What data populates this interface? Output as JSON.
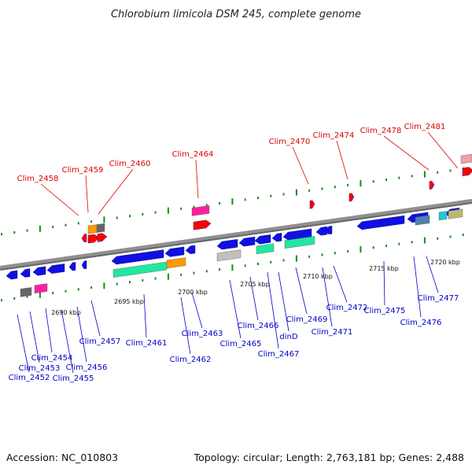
{
  "header": {
    "title": "Chlorobium limicola DSM 245, complete genome"
  },
  "footer": {
    "accession": "Accession: NC_010803",
    "summary": "Topology: circular; Length: 2,763,181 bp; Genes: 2,488"
  },
  "colors": {
    "backbone": "#909090",
    "tick_green": "#1a8a1a",
    "forward_label": "#dd0000",
    "reverse_label": "#0000c8",
    "gene_blue": "#1010e0",
    "gene_red": "#ff0000",
    "rna_green": "#20e8a0",
    "orange": "#ff9900",
    "magenta": "#ff20a0",
    "gray": "#666666",
    "light_gray": "#c0c0c0",
    "steel_blue": "#5080b0",
    "cyan": "#20c8d8",
    "khaki": "#c0b870",
    "pink": "#f0a0a8"
  },
  "scale_labels": [
    "2690 kbp",
    "2695 kbp",
    "2700 kbp",
    "2705 kbp",
    "2710 kbp",
    "2715 kbp",
    "2720 kbp"
  ],
  "forward_labels": [
    "Clim_2458",
    "Clim_2459",
    "Clim_2460",
    "Clim_2464",
    "Clim_2470",
    "Clim_2474",
    "Clim_2478",
    "Clim_2481"
  ],
  "reverse_labels": [
    "Clim_2452",
    "Clim_2453",
    "Clim_2454",
    "Clim_2455",
    "Clim_2456",
    "Clim_2457",
    "Clim_2461",
    "Clim_2462",
    "Clim_2463",
    "Clim_2465",
    "Clim_2466",
    "Clim_2467",
    "dinD",
    "Clim_2469",
    "Clim_2471",
    "Clim_2472",
    "Clim_2475",
    "Clim_2476",
    "Clim_2477"
  ]
}
